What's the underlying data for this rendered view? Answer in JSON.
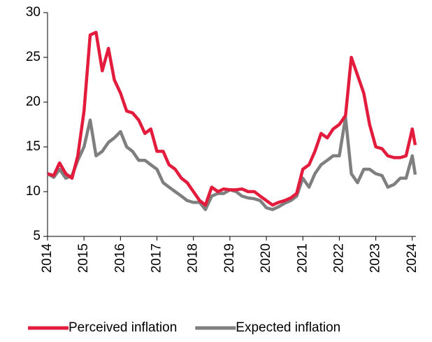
{
  "chart_data": {
    "type": "line",
    "x": [
      2014,
      2014.17,
      2014.33,
      2014.5,
      2014.67,
      2014.83,
      2015,
      2015.17,
      2015.33,
      2015.5,
      2015.67,
      2015.83,
      2016,
      2016.17,
      2016.33,
      2016.5,
      2016.67,
      2016.83,
      2017,
      2017.17,
      2017.33,
      2017.5,
      2017.67,
      2017.83,
      2018,
      2018.17,
      2018.33,
      2018.5,
      2018.67,
      2018.83,
      2019,
      2019.17,
      2019.33,
      2019.5,
      2019.67,
      2019.83,
      2020,
      2020.17,
      2020.33,
      2020.5,
      2020.67,
      2020.83,
      2021,
      2021.17,
      2021.33,
      2021.5,
      2021.67,
      2021.83,
      2022,
      2022.17,
      2022.33,
      2022.5,
      2022.67,
      2022.83,
      2023,
      2023.17,
      2023.33,
      2023.5,
      2023.67,
      2023.83,
      2024,
      2024.08
    ],
    "series": [
      {
        "name": "Perceived inflation",
        "color": "#e31b3c",
        "values": [
          12,
          11.8,
          13.2,
          12,
          11.5,
          14,
          19,
          27.5,
          27.8,
          23.5,
          26,
          22.5,
          21,
          19,
          18.8,
          18,
          16.5,
          17,
          14.5,
          14.5,
          13,
          12.5,
          11.5,
          11,
          10,
          9,
          8.5,
          10.5,
          10,
          10.3,
          10.2,
          10.2,
          10.3,
          10,
          10,
          9.5,
          9,
          8.5,
          8.8,
          9,
          9.3,
          9.8,
          12.5,
          13,
          14.5,
          16.5,
          16,
          17,
          17.5,
          18.5,
          25,
          23,
          21,
          17.5,
          15,
          14.8,
          14,
          13.8,
          13.8,
          14,
          17,
          15.2
        ]
      },
      {
        "name": "Expected inflation",
        "color": "#7f7f7f",
        "values": [
          12,
          11.6,
          12.5,
          11.5,
          11.8,
          13.5,
          15,
          18,
          14,
          14.5,
          15.5,
          16,
          16.7,
          15,
          14.5,
          13.5,
          13.5,
          13,
          12.5,
          11,
          10.5,
          10,
          9.5,
          9,
          8.8,
          8.8,
          8,
          9.5,
          9.8,
          9.8,
          10.2,
          10,
          9.5,
          9.3,
          9.2,
          9,
          8.2,
          8,
          8.3,
          8.7,
          9,
          9.5,
          11.5,
          10.5,
          12,
          13,
          13.5,
          14,
          14,
          18.3,
          12,
          11,
          12.5,
          12.5,
          12,
          11.8,
          10.5,
          10.8,
          11.5,
          11.5,
          14,
          11.9
        ]
      }
    ],
    "xlim": [
      2014,
      2024.1
    ],
    "xticks": [
      2014,
      2015,
      2016,
      2017,
      2018,
      2019,
      2020,
      2021,
      2022,
      2023,
      2024
    ],
    "ylim": [
      5,
      30
    ],
    "yticks": [
      5,
      10,
      15,
      20,
      25,
      30
    ],
    "grid": false,
    "legend": "bottom"
  }
}
